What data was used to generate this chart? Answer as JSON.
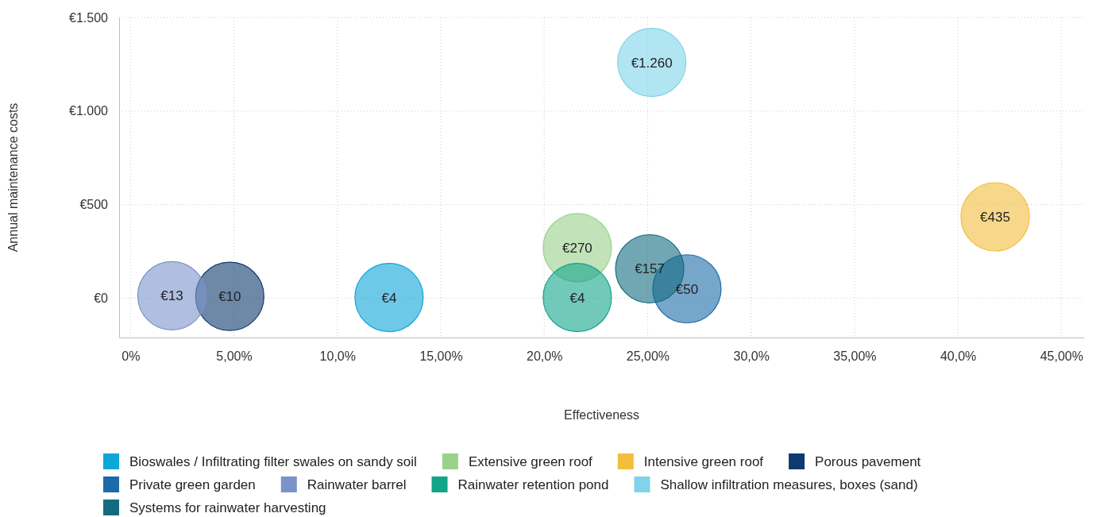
{
  "chart_data": {
    "type": "bubble",
    "xlabel": "Effectiveness",
    "ylabel": "Annual maintenance costs",
    "xlim": [
      -0.55,
      46.1
    ],
    "ylim": [
      -210,
      1500
    ],
    "xticks": [
      {
        "value": 0,
        "label": "0%"
      },
      {
        "value": 5,
        "label": "5,00%"
      },
      {
        "value": 10,
        "label": "10,0%"
      },
      {
        "value": 15,
        "label": "15,00%"
      },
      {
        "value": 20,
        "label": "20,0%"
      },
      {
        "value": 25,
        "label": "25,00%"
      },
      {
        "value": 30,
        "label": "30,0%"
      },
      {
        "value": 35,
        "label": "35,00%"
      },
      {
        "value": 40,
        "label": "40,0%"
      },
      {
        "value": 45,
        "label": "45,00%"
      }
    ],
    "yticks": [
      {
        "value": 0,
        "label": "€0"
      },
      {
        "value": 500,
        "label": "€500"
      },
      {
        "value": 1000,
        "label": "€1.000"
      },
      {
        "value": 1500,
        "label": "€1.500"
      }
    ],
    "grid": true,
    "legend": "bottom",
    "series": [
      {
        "name": "Bioswales / Infiltrating filter swales on sandy soil",
        "color": "#0ea5d9",
        "x": [
          12.5
        ],
        "values": [
          4
        ],
        "sizes": [
          1
        ],
        "value_labels": [
          "€4"
        ]
      },
      {
        "name": "Extensive green roof",
        "color": "#9ad18b",
        "x": [
          21.6
        ],
        "values": [
          270
        ],
        "sizes": [
          1
        ],
        "value_labels": [
          "€270"
        ]
      },
      {
        "name": "Intensive green roof",
        "color": "#f2be3c",
        "x": [
          41.8
        ],
        "values": [
          435
        ],
        "sizes": [
          1
        ],
        "value_labels": [
          "€435"
        ]
      },
      {
        "name": "Porous pavement",
        "color": "#0e3a6e",
        "x": [
          4.8
        ],
        "values": [
          10
        ],
        "sizes": [
          1
        ],
        "value_labels": [
          "€10"
        ]
      },
      {
        "name": "Private green garden",
        "color": "#1d6aa8",
        "x": [
          26.9
        ],
        "values": [
          50
        ],
        "sizes": [
          1
        ],
        "value_labels": [
          "€50"
        ]
      },
      {
        "name": "Rainwater barrel",
        "color": "#7b93c9",
        "x": [
          2.0
        ],
        "values": [
          13
        ],
        "sizes": [
          1
        ],
        "value_labels": [
          "€13"
        ]
      },
      {
        "name": "Rainwater retention pond",
        "color": "#12a58a",
        "x": [
          21.6
        ],
        "values": [
          4
        ],
        "sizes": [
          1
        ],
        "value_labels": [
          "€4"
        ]
      },
      {
        "name": "Shallow infiltration measures, boxes (sand)",
        "color": "#7fd3ea",
        "x": [
          25.2
        ],
        "values": [
          1260
        ],
        "sizes": [
          1
        ],
        "value_labels": [
          "€1.260"
        ]
      },
      {
        "name": "Systems for rainwater harvesting",
        "color": "#136b80",
        "x": [
          25.1
        ],
        "values": [
          157
        ],
        "sizes": [
          1
        ],
        "value_labels": [
          "€157"
        ]
      }
    ]
  }
}
